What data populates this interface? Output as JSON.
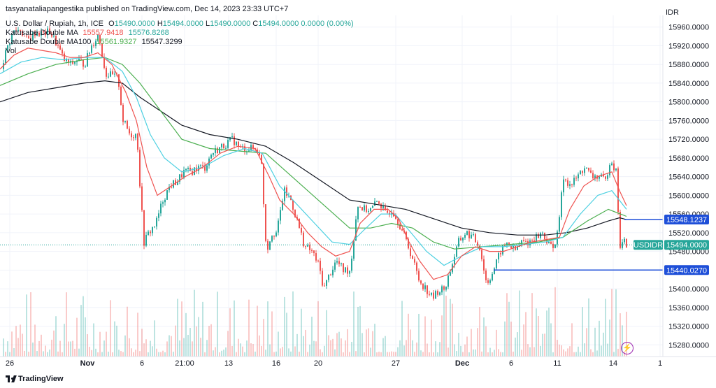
{
  "header": {
    "published": "tasyanataliapangestika published on TradingView.com, Dec 14, 2023 23:33 UTC+7",
    "symbol_title": "U.S. Dollar / Rupiah, 1h, ICE",
    "ohlc": {
      "o_label": "O",
      "o": "15490.0000",
      "h_label": "H",
      "h": "15494.0000",
      "l_label": "L",
      "l": "15490.0000",
      "c_label": "C",
      "c": "15494.0000",
      "change": "0.0000 (0.00%)"
    },
    "ma1": {
      "name": "Katusabe Double MA",
      "v1": "15557.9418",
      "v2": "15576.8268"
    },
    "ma2": {
      "name": "Katusabe Double MA100",
      "v1": "15561.9327",
      "v2": "15547.3299"
    },
    "vol": {
      "name": "Vol"
    }
  },
  "currency": "IDR",
  "footer": {
    "brand": "TradingView"
  },
  "colors": {
    "up": "#26a69a",
    "down": "#ef5350",
    "ma_fast": "#ef5350",
    "ma_mid": "#4dd0e1",
    "ma_slow": "#4caf50",
    "ma_long": "#131722",
    "hline": "#1e4fd8"
  },
  "chart_data": {
    "type": "candlestick",
    "y_ticks": [
      15960,
      15920,
      15880,
      15840,
      15800,
      15760,
      15720,
      15680,
      15640,
      15600,
      15560,
      15520,
      15480,
      15440,
      15400,
      15360,
      15320,
      15280
    ],
    "ylim": [
      15255,
      15985
    ],
    "x_ticks": [
      "26",
      "Nov",
      "6",
      "21:00",
      "13",
      "16",
      "20",
      "27",
      "Dec",
      "6",
      "11",
      "14",
      "1"
    ],
    "last_price_label": "USDIDR",
    "last_price": "15494.0000",
    "horizontal_lines": [
      {
        "value": "15548.1237",
        "price": 15548.1237
      },
      {
        "value": "15440.0270",
        "price": 15440.027
      }
    ],
    "price_path": [
      [
        0,
        15870
      ],
      [
        8,
        15910
      ],
      [
        18,
        15950
      ],
      [
        28,
        15955
      ],
      [
        38,
        15930
      ],
      [
        50,
        15950
      ],
      [
        60,
        15945
      ],
      [
        70,
        15950
      ],
      [
        80,
        15925
      ],
      [
        90,
        15890
      ],
      [
        100,
        15880
      ],
      [
        110,
        15890
      ],
      [
        120,
        15880
      ],
      [
        130,
        15920
      ],
      [
        140,
        15945
      ],
      [
        150,
        15860
      ],
      [
        160,
        15855
      ],
      [
        168,
        15850
      ],
      [
        175,
        15760
      ],
      [
        185,
        15730
      ],
      [
        195,
        15730
      ],
      [
        200,
        15600
      ],
      [
        205,
        15500
      ],
      [
        212,
        15520
      ],
      [
        222,
        15540
      ],
      [
        232,
        15590
      ],
      [
        242,
        15620
      ],
      [
        252,
        15630
      ],
      [
        262,
        15650
      ],
      [
        272,
        15650
      ],
      [
        282,
        15660
      ],
      [
        292,
        15660
      ],
      [
        302,
        15690
      ],
      [
        312,
        15700
      ],
      [
        322,
        15710
      ],
      [
        332,
        15720
      ],
      [
        342,
        15700
      ],
      [
        352,
        15700
      ],
      [
        362,
        15700
      ],
      [
        372,
        15690
      ],
      [
        380,
        15480
      ],
      [
        388,
        15520
      ],
      [
        395,
        15520
      ],
      [
        405,
        15610
      ],
      [
        415,
        15590
      ],
      [
        425,
        15540
      ],
      [
        435,
        15490
      ],
      [
        445,
        15480
      ],
      [
        455,
        15450
      ],
      [
        462,
        15400
      ],
      [
        470,
        15430
      ],
      [
        480,
        15460
      ],
      [
        490,
        15440
      ],
      [
        500,
        15440
      ],
      [
        510,
        15580
      ],
      [
        520,
        15570
      ],
      [
        530,
        15570
      ],
      [
        540,
        15590
      ],
      [
        550,
        15560
      ],
      [
        560,
        15570
      ],
      [
        570,
        15540
      ],
      [
        578,
        15510
      ],
      [
        588,
        15470
      ],
      [
        598,
        15420
      ],
      [
        608,
        15400
      ],
      [
        618,
        15380
      ],
      [
        625,
        15395
      ],
      [
        635,
        15400
      ],
      [
        645,
        15450
      ],
      [
        655,
        15500
      ],
      [
        665,
        15520
      ],
      [
        675,
        15510
      ],
      [
        685,
        15490
      ],
      [
        695,
        15410
      ],
      [
        705,
        15440
      ],
      [
        715,
        15480
      ],
      [
        725,
        15500
      ],
      [
        735,
        15480
      ],
      [
        745,
        15500
      ],
      [
        755,
        15500
      ],
      [
        765,
        15510
      ],
      [
        775,
        15520
      ],
      [
        785,
        15490
      ],
      [
        795,
        15500
      ],
      [
        805,
        15640
      ],
      [
        815,
        15620
      ],
      [
        825,
        15640
      ],
      [
        835,
        15660
      ],
      [
        845,
        15640
      ],
      [
        855,
        15640
      ],
      [
        865,
        15630
      ],
      [
        872,
        15680
      ],
      [
        880,
        15650
      ],
      [
        886,
        15490
      ],
      [
        892,
        15500
      ],
      [
        896,
        15494
      ]
    ],
    "ma_fast_path": [
      [
        0,
        15870
      ],
      [
        20,
        15900
      ],
      [
        40,
        15915
      ],
      [
        60,
        15910
      ],
      [
        80,
        15905
      ],
      [
        100,
        15895
      ],
      [
        120,
        15895
      ],
      [
        140,
        15905
      ],
      [
        160,
        15880
      ],
      [
        180,
        15820
      ],
      [
        195,
        15760
      ],
      [
        210,
        15660
      ],
      [
        225,
        15600
      ],
      [
        245,
        15620
      ],
      [
        265,
        15640
      ],
      [
        290,
        15660
      ],
      [
        315,
        15690
      ],
      [
        340,
        15705
      ],
      [
        365,
        15700
      ],
      [
        385,
        15640
      ],
      [
        400,
        15590
      ],
      [
        420,
        15560
      ],
      [
        440,
        15520
      ],
      [
        460,
        15490
      ],
      [
        480,
        15470
      ],
      [
        500,
        15480
      ],
      [
        515,
        15540
      ],
      [
        535,
        15570
      ],
      [
        555,
        15570
      ],
      [
        570,
        15550
      ],
      [
        585,
        15500
      ],
      [
        600,
        15460
      ],
      [
        620,
        15420
      ],
      [
        640,
        15430
      ],
      [
        660,
        15470
      ],
      [
        680,
        15490
      ],
      [
        700,
        15480
      ],
      [
        720,
        15480
      ],
      [
        740,
        15490
      ],
      [
        760,
        15500
      ],
      [
        780,
        15505
      ],
      [
        800,
        15510
      ],
      [
        815,
        15570
      ],
      [
        835,
        15620
      ],
      [
        855,
        15640
      ],
      [
        875,
        15650
      ],
      [
        886,
        15610
      ],
      [
        896,
        15578
      ]
    ],
    "ma_mid_path": [
      [
        0,
        15860
      ],
      [
        30,
        15885
      ],
      [
        60,
        15895
      ],
      [
        90,
        15890
      ],
      [
        120,
        15895
      ],
      [
        150,
        15895
      ],
      [
        175,
        15865
      ],
      [
        195,
        15810
      ],
      [
        215,
        15730
      ],
      [
        235,
        15680
      ],
      [
        260,
        15650
      ],
      [
        290,
        15660
      ],
      [
        320,
        15685
      ],
      [
        350,
        15700
      ],
      [
        375,
        15690
      ],
      [
        400,
        15620
      ],
      [
        425,
        15580
      ],
      [
        450,
        15540
      ],
      [
        475,
        15500
      ],
      [
        500,
        15495
      ],
      [
        520,
        15525
      ],
      [
        545,
        15560
      ],
      [
        565,
        15560
      ],
      [
        585,
        15525
      ],
      [
        610,
        15480
      ],
      [
        635,
        15450
      ],
      [
        660,
        15470
      ],
      [
        690,
        15490
      ],
      [
        720,
        15490
      ],
      [
        750,
        15495
      ],
      [
        780,
        15500
      ],
      [
        805,
        15510
      ],
      [
        830,
        15560
      ],
      [
        855,
        15600
      ],
      [
        875,
        15610
      ],
      [
        896,
        15570
      ]
    ],
    "ma_slow_path": [
      [
        0,
        15835
      ],
      [
        40,
        15860
      ],
      [
        80,
        15880
      ],
      [
        120,
        15890
      ],
      [
        150,
        15895
      ],
      [
        175,
        15880
      ],
      [
        200,
        15840
      ],
      [
        230,
        15780
      ],
      [
        260,
        15720
      ],
      [
        300,
        15700
      ],
      [
        340,
        15695
      ],
      [
        380,
        15690
      ],
      [
        410,
        15650
      ],
      [
        440,
        15610
      ],
      [
        470,
        15570
      ],
      [
        500,
        15530
      ],
      [
        530,
        15530
      ],
      [
        560,
        15540
      ],
      [
        590,
        15530
      ],
      [
        620,
        15500
      ],
      [
        650,
        15485
      ],
      [
        690,
        15490
      ],
      [
        730,
        15495
      ],
      [
        770,
        15500
      ],
      [
        805,
        15510
      ],
      [
        840,
        15545
      ],
      [
        870,
        15570
      ],
      [
        896,
        15555
      ]
    ],
    "ma_long_path": [
      [
        0,
        15800
      ],
      [
        40,
        15820
      ],
      [
        80,
        15830
      ],
      [
        120,
        15840
      ],
      [
        150,
        15845
      ],
      [
        175,
        15840
      ],
      [
        200,
        15810
      ],
      [
        230,
        15780
      ],
      [
        260,
        15750
      ],
      [
        300,
        15730
      ],
      [
        340,
        15720
      ],
      [
        380,
        15705
      ],
      [
        420,
        15670
      ],
      [
        460,
        15630
      ],
      [
        500,
        15590
      ],
      [
        540,
        15580
      ],
      [
        580,
        15570
      ],
      [
        620,
        15550
      ],
      [
        660,
        15530
      ],
      [
        700,
        15520
      ],
      [
        740,
        15515
      ],
      [
        780,
        15515
      ],
      [
        810,
        15520
      ],
      [
        840,
        15530
      ],
      [
        870,
        15545
      ],
      [
        886,
        15552
      ],
      [
        896,
        15548
      ]
    ]
  }
}
